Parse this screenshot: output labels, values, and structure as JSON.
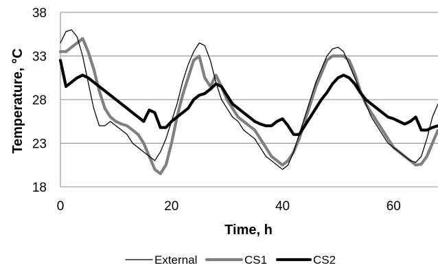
{
  "chart_data": {
    "type": "line",
    "xlabel": "Time, h",
    "ylabel": "Temperature, °C",
    "xlim": [
      0,
      68
    ],
    "ylim": [
      18,
      38
    ],
    "xticks": [
      0,
      20,
      40,
      60
    ],
    "yticks": [
      18,
      23,
      28,
      33,
      38
    ],
    "grid": "horizontal",
    "legend": "bottom",
    "series": [
      {
        "name": "External",
        "color": "#000000",
        "style": "thin",
        "x": [
          0,
          1,
          2,
          3,
          4,
          5,
          6,
          7,
          8,
          9,
          10,
          11,
          12,
          13,
          14,
          15,
          16,
          17,
          18,
          19,
          20,
          21,
          22,
          23,
          24,
          25,
          26,
          27,
          28,
          29,
          30,
          31,
          32,
          33,
          34,
          35,
          36,
          37,
          38,
          39,
          40,
          41,
          42,
          43,
          44,
          45,
          46,
          47,
          48,
          49,
          50,
          51,
          52,
          53,
          54,
          55,
          56,
          57,
          58,
          59,
          60,
          61,
          62,
          63,
          64,
          65,
          66,
          67,
          68
        ],
        "y": [
          34.5,
          35.8,
          36.0,
          35.2,
          33.0,
          30.0,
          27.0,
          25.0,
          25.0,
          25.5,
          25.0,
          24.5,
          24.0,
          23.0,
          22.5,
          22.0,
          21.5,
          21.0,
          22.0,
          23.5,
          25.5,
          27.5,
          30.0,
          32.0,
          33.5,
          34.5,
          34.2,
          32.5,
          30.0,
          28.0,
          27.0,
          26.0,
          25.5,
          24.5,
          24.0,
          23.5,
          22.5,
          21.5,
          21.0,
          20.5,
          20.0,
          20.5,
          22.0,
          24.0,
          26.0,
          28.0,
          30.0,
          31.5,
          33.0,
          33.8,
          34.0,
          33.5,
          32.0,
          30.5,
          29.0,
          27.5,
          26.0,
          25.0,
          24.0,
          23.0,
          22.5,
          22.0,
          21.5,
          21.0,
          20.8,
          21.5,
          23.5,
          26.0,
          27.5
        ]
      },
      {
        "name": "CS1",
        "color": "#7f7f7f",
        "style": "thick",
        "x": [
          0,
          1,
          2,
          3,
          4,
          5,
          6,
          7,
          8,
          9,
          10,
          11,
          12,
          13,
          14,
          15,
          16,
          17,
          18,
          19,
          20,
          21,
          22,
          23,
          24,
          25,
          26,
          27,
          28,
          29,
          30,
          31,
          32,
          33,
          34,
          35,
          36,
          37,
          38,
          39,
          40,
          41,
          42,
          43,
          44,
          45,
          46,
          47,
          48,
          49,
          50,
          51,
          52,
          53,
          54,
          55,
          56,
          57,
          58,
          59,
          60,
          61,
          62,
          63,
          64,
          65,
          66,
          67,
          68
        ],
        "y": [
          33.5,
          33.5,
          34.0,
          34.5,
          35.0,
          33.5,
          31.5,
          29.0,
          27.0,
          26.0,
          25.5,
          25.2,
          25.0,
          24.5,
          24.0,
          23.0,
          21.5,
          20.0,
          19.5,
          20.5,
          23.0,
          26.0,
          28.5,
          30.5,
          32.5,
          33.0,
          30.5,
          29.5,
          30.8,
          29.5,
          28.0,
          27.0,
          26.0,
          25.5,
          25.0,
          24.5,
          23.5,
          22.5,
          21.5,
          21.0,
          20.5,
          21.0,
          22.0,
          23.5,
          25.5,
          27.5,
          29.5,
          31.0,
          32.5,
          33.0,
          33.0,
          33.0,
          32.5,
          31.0,
          29.0,
          27.5,
          26.5,
          25.5,
          24.5,
          23.5,
          22.5,
          22.0,
          21.5,
          21.0,
          20.5,
          20.6,
          21.5,
          23.0,
          24.5
        ]
      },
      {
        "name": "CS2",
        "color": "#000000",
        "style": "thick",
        "x": [
          0,
          1,
          2,
          3,
          4,
          5,
          6,
          7,
          8,
          9,
          10,
          11,
          12,
          13,
          14,
          15,
          16,
          17,
          18,
          19,
          20,
          21,
          22,
          23,
          24,
          25,
          26,
          27,
          28,
          29,
          30,
          31,
          32,
          33,
          34,
          35,
          36,
          37,
          38,
          39,
          40,
          41,
          42,
          43,
          44,
          45,
          46,
          47,
          48,
          49,
          50,
          51,
          52,
          53,
          54,
          55,
          56,
          57,
          58,
          59,
          60,
          61,
          62,
          63,
          64,
          65,
          66,
          67,
          68
        ],
        "y": [
          32.5,
          29.5,
          30.0,
          30.5,
          30.8,
          30.5,
          30.0,
          29.5,
          29.0,
          28.5,
          28.0,
          27.5,
          27.0,
          26.5,
          26.0,
          25.5,
          26.8,
          26.5,
          24.8,
          24.8,
          25.5,
          26.0,
          26.5,
          27.0,
          28.0,
          28.5,
          28.7,
          29.2,
          29.8,
          29.5,
          28.5,
          27.5,
          27.0,
          26.5,
          26.0,
          25.5,
          25.2,
          25.0,
          25.0,
          25.5,
          25.8,
          25.0,
          24.0,
          24.0,
          25.0,
          26.0,
          27.0,
          28.0,
          28.8,
          29.8,
          30.5,
          30.8,
          30.5,
          29.8,
          28.8,
          28.0,
          27.5,
          27.0,
          26.5,
          26.0,
          25.8,
          25.5,
          25.2,
          25.5,
          26.0,
          24.5,
          24.5,
          24.8,
          25.0
        ]
      }
    ]
  }
}
